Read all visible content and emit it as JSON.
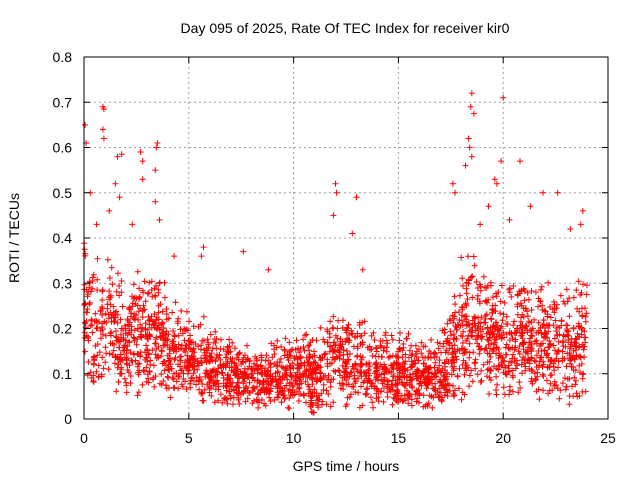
{
  "chart_data": {
    "type": "scatter",
    "title": "Day 095 of 2025, Rate Of TEC Index for receiver kir0",
    "xlabel": "GPS time / hours",
    "ylabel": "ROTI / TECUs",
    "xlim": [
      0,
      25
    ],
    "ylim": [
      0,
      0.8
    ],
    "xticks": [
      0,
      5,
      10,
      15,
      20,
      25
    ],
    "yticks": [
      0,
      0.1,
      0.2,
      0.3,
      0.4,
      0.5,
      0.6,
      0.7,
      0.8
    ],
    "xtick_labels": [
      "0",
      "5",
      "10",
      "15",
      "20",
      "25"
    ],
    "ytick_labels": [
      "0",
      "0.1",
      "0.2",
      "0.3",
      "0.4",
      "0.5",
      "0.6",
      "0.7",
      "0.8"
    ],
    "grid": true,
    "marker": "+",
    "marker_color": "#ff0000",
    "envelope": {
      "x": [
        0,
        0.5,
        1,
        1.5,
        2,
        2.5,
        3,
        3.5,
        4,
        4.5,
        5,
        5.5,
        6,
        6.5,
        7,
        7.5,
        8,
        8.5,
        9,
        9.5,
        10,
        10.5,
        11,
        11.5,
        12,
        12.5,
        13,
        13.5,
        14,
        14.5,
        15,
        15.5,
        16,
        16.5,
        17,
        17.5,
        18,
        18.5,
        19,
        19.5,
        20,
        20.5,
        21,
        21.5,
        22,
        22.5,
        23,
        23.5,
        24
      ],
      "low": [
        0.06,
        0.05,
        0.05,
        0.05,
        0.05,
        0.04,
        0.05,
        0.05,
        0.04,
        0.04,
        0.04,
        0.04,
        0.03,
        0.03,
        0.02,
        0.02,
        0.02,
        0.02,
        0.02,
        0.02,
        0.02,
        0.02,
        0.01,
        0.01,
        0.02,
        0.02,
        0.02,
        0.02,
        0.02,
        0.02,
        0.02,
        0.02,
        0.02,
        0.02,
        0.02,
        0.02,
        0.04,
        0.05,
        0.05,
        0.05,
        0.04,
        0.03,
        0.04,
        0.04,
        0.04,
        0.03,
        0.03,
        0.02,
        0.04
      ],
      "high": [
        0.44,
        0.4,
        0.38,
        0.36,
        0.3,
        0.35,
        0.33,
        0.38,
        0.28,
        0.26,
        0.26,
        0.24,
        0.22,
        0.2,
        0.19,
        0.17,
        0.17,
        0.16,
        0.18,
        0.18,
        0.19,
        0.19,
        0.2,
        0.22,
        0.26,
        0.25,
        0.24,
        0.22,
        0.22,
        0.2,
        0.2,
        0.2,
        0.19,
        0.18,
        0.2,
        0.26,
        0.4,
        0.38,
        0.36,
        0.34,
        0.36,
        0.34,
        0.32,
        0.3,
        0.32,
        0.3,
        0.3,
        0.31,
        0.36
      ]
    },
    "outliers": [
      {
        "x": 0.05,
        "y": 0.65
      },
      {
        "x": 0.1,
        "y": 0.61
      },
      {
        "x": 0.3,
        "y": 0.5
      },
      {
        "x": 0.9,
        "y": 0.69
      },
      {
        "x": 0.95,
        "y": 0.685
      },
      {
        "x": 0.9,
        "y": 0.64
      },
      {
        "x": 0.95,
        "y": 0.62
      },
      {
        "x": 1.6,
        "y": 0.58
      },
      {
        "x": 1.8,
        "y": 0.585
      },
      {
        "x": 1.5,
        "y": 0.52
      },
      {
        "x": 1.7,
        "y": 0.49
      },
      {
        "x": 2.7,
        "y": 0.59
      },
      {
        "x": 2.8,
        "y": 0.57
      },
      {
        "x": 2.8,
        "y": 0.53
      },
      {
        "x": 3.5,
        "y": 0.61
      },
      {
        "x": 3.45,
        "y": 0.6
      },
      {
        "x": 3.4,
        "y": 0.55
      },
      {
        "x": 3.4,
        "y": 0.48
      },
      {
        "x": 3.6,
        "y": 0.44
      },
      {
        "x": 5.7,
        "y": 0.38
      },
      {
        "x": 5.6,
        "y": 0.36
      },
      {
        "x": 7.6,
        "y": 0.37
      },
      {
        "x": 8.8,
        "y": 0.33
      },
      {
        "x": 12.0,
        "y": 0.52
      },
      {
        "x": 12.05,
        "y": 0.5
      },
      {
        "x": 11.9,
        "y": 0.45
      },
      {
        "x": 13.0,
        "y": 0.49
      },
      {
        "x": 12.8,
        "y": 0.41
      },
      {
        "x": 13.3,
        "y": 0.33
      },
      {
        "x": 17.6,
        "y": 0.52
      },
      {
        "x": 17.7,
        "y": 0.5
      },
      {
        "x": 18.5,
        "y": 0.72
      },
      {
        "x": 18.45,
        "y": 0.69
      },
      {
        "x": 18.6,
        "y": 0.675
      },
      {
        "x": 18.35,
        "y": 0.62
      },
      {
        "x": 18.4,
        "y": 0.6
      },
      {
        "x": 18.5,
        "y": 0.58
      },
      {
        "x": 18.2,
        "y": 0.56
      },
      {
        "x": 20.0,
        "y": 0.71
      },
      {
        "x": 19.6,
        "y": 0.53
      },
      {
        "x": 19.7,
        "y": 0.52
      },
      {
        "x": 19.9,
        "y": 0.57
      },
      {
        "x": 20.8,
        "y": 0.57
      },
      {
        "x": 21.3,
        "y": 0.47
      },
      {
        "x": 21.9,
        "y": 0.5
      },
      {
        "x": 22.6,
        "y": 0.5
      },
      {
        "x": 23.2,
        "y": 0.42
      },
      {
        "x": 23.8,
        "y": 0.46
      },
      {
        "x": 23.7,
        "y": 0.43
      },
      {
        "x": 20.3,
        "y": 0.44
      },
      {
        "x": 19.3,
        "y": 0.47
      },
      {
        "x": 18.9,
        "y": 0.43
      },
      {
        "x": 2.3,
        "y": 0.43
      },
      {
        "x": 1.2,
        "y": 0.46
      },
      {
        "x": 0.6,
        "y": 0.43
      },
      {
        "x": 4.3,
        "y": 0.36
      }
    ]
  }
}
